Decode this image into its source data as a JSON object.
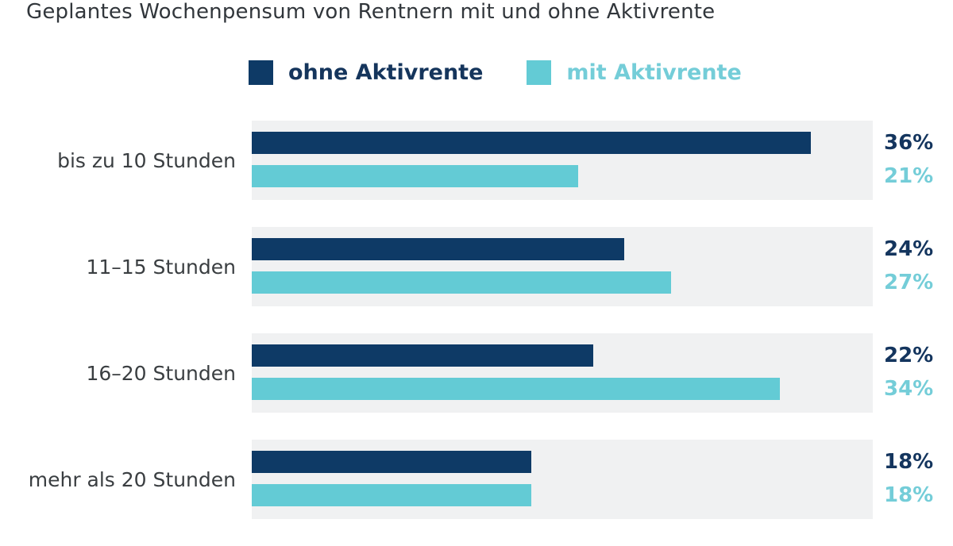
{
  "title": "Geplantes Wochenpensum von Rentnern mit und ohne Aktivrente",
  "legend": {
    "items": [
      {
        "label": "ohne Aktivrente",
        "color": "#0e3a66",
        "text_color": "#15355c"
      },
      {
        "label": "mit Aktivrente",
        "color": "#63cbd5",
        "text_color": "#74cdd8"
      }
    ]
  },
  "colors": {
    "navy_bar": "#0e3a66",
    "cyan_bar": "#63cbd5",
    "navy_value_text": "#14355e",
    "cyan_value_text": "#74cdd8",
    "track_background": "#f0f1f2",
    "title_text": "#31363b",
    "category_text": "#3a3e41",
    "page_background": "#ffffff"
  },
  "chart_data": {
    "type": "bar",
    "orientation": "horizontal",
    "title": "Geplantes Wochenpensum von Rentnern mit und ohne Aktivrente",
    "categories": [
      "bis zu 10 Stunden",
      "11–15 Stunden",
      "16–20 Stunden",
      "mehr als 20 Stunden"
    ],
    "series": [
      {
        "name": "ohne Aktivrente",
        "color": "#0e3a66",
        "values": [
          36,
          24,
          22,
          18
        ]
      },
      {
        "name": "mit Aktivrente",
        "color": "#63cbd5",
        "values": [
          21,
          27,
          34,
          18
        ]
      }
    ],
    "value_suffix": "%",
    "xlim": [
      0,
      40
    ],
    "grid": false,
    "legend_position": "top",
    "data_labels": "right",
    "xlabel": "",
    "ylabel": ""
  }
}
